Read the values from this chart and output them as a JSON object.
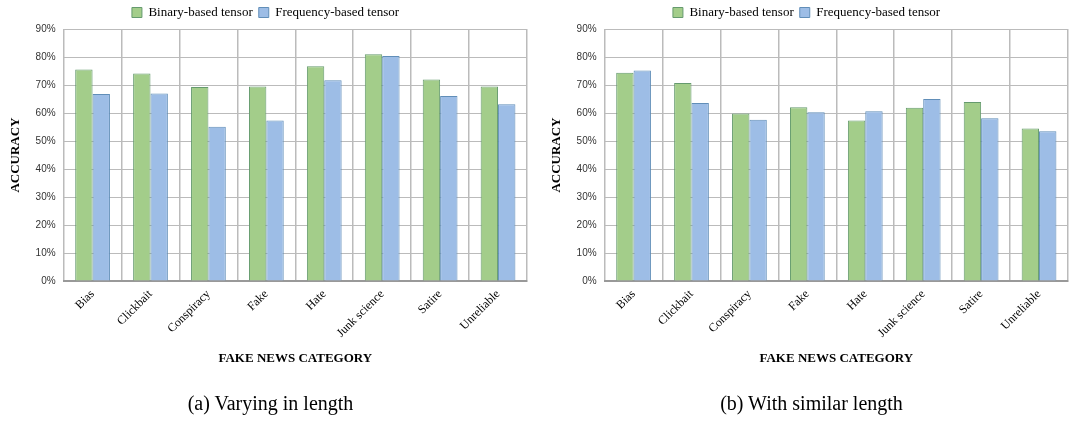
{
  "chart_data": [
    {
      "type": "bar",
      "categories": [
        "Bias",
        "Clickbait",
        "Conspiracy",
        "Fake",
        "Hate",
        "Junk science",
        "Satire",
        "Unreliable"
      ],
      "series": [
        {
          "name": "Binary-based tensor",
          "color": "#a3cd8a",
          "values": [
            75.5,
            74.1,
            69.3,
            69.5,
            76.7,
            81.0,
            72.0,
            69.5
          ]
        },
        {
          "name": "Frequency-based tensor",
          "color": "#9dbde6",
          "values": [
            66.8,
            67.0,
            55.1,
            57.3,
            71.7,
            80.4,
            66.1,
            63.1
          ]
        }
      ],
      "xlabel": "FAKE NEWS CATEGORY",
      "ylabel": "ACCURACY",
      "ylim": [
        0,
        90
      ],
      "yticks": [
        {
          "value": 0,
          "label": "0%"
        },
        {
          "value": 10,
          "label": "10%"
        },
        {
          "value": 20,
          "label": "20%"
        },
        {
          "value": 30,
          "label": "30%"
        },
        {
          "value": 40,
          "label": "40%"
        },
        {
          "value": 50,
          "label": "50%"
        },
        {
          "value": 60,
          "label": "60%"
        },
        {
          "value": 70,
          "label": "70%"
        },
        {
          "value": 80,
          "label": "80%"
        },
        {
          "value": 90,
          "label": "90%"
        }
      ],
      "grid": true,
      "legend": "top",
      "annotations": [
        "(a)  Varying in length"
      ]
    },
    {
      "type": "bar",
      "categories": [
        "Bias",
        "Clickbait",
        "Conspiracy",
        "Fake",
        "Hate",
        "Junk science",
        "Satire",
        "Unreliable"
      ],
      "series": [
        {
          "name": "Binary-based tensor",
          "color": "#a3cd8a",
          "values": [
            74.4,
            70.7,
            59.8,
            62.1,
            57.3,
            61.9,
            63.9,
            54.5
          ]
        },
        {
          "name": "Frequency-based tensor",
          "color": "#9dbde6",
          "values": [
            75.2,
            63.6,
            57.6,
            60.3,
            60.6,
            65.0,
            58.1,
            53.5
          ]
        }
      ],
      "xlabel": "FAKE NEWS CATEGORY",
      "ylabel": "ACCURACY",
      "ylim": [
        0,
        90
      ],
      "yticks": [
        {
          "value": 0,
          "label": "0%"
        },
        {
          "value": 10,
          "label": "10%"
        },
        {
          "value": 20,
          "label": "20%"
        },
        {
          "value": 30,
          "label": "30%"
        },
        {
          "value": 40,
          "label": "40%"
        },
        {
          "value": 50,
          "label": "50%"
        },
        {
          "value": 60,
          "label": "60%"
        },
        {
          "value": 70,
          "label": "70%"
        },
        {
          "value": 80,
          "label": "80%"
        },
        {
          "value": 90,
          "label": "90%"
        }
      ],
      "grid": true,
      "legend": "top",
      "annotations": [
        "(b)  With similar length"
      ]
    }
  ]
}
